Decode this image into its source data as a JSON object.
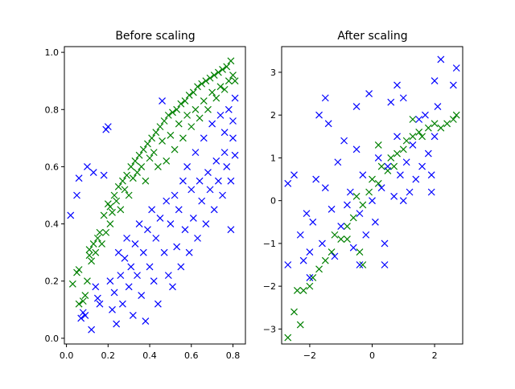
{
  "chart_data": [
    {
      "type": "scatter",
      "title": "Before scaling",
      "xlabel": "",
      "ylabel": "",
      "xlim": [
        -0.01,
        0.86
      ],
      "ylim": [
        -0.02,
        1.02
      ],
      "xticks": [
        "0.0",
        "0.2",
        "0.4",
        "0.6",
        "0.8"
      ],
      "yticks": [
        "0.0",
        "0.2",
        "0.4",
        "0.6",
        "0.8",
        "1.0"
      ],
      "xtick_values": [
        0.0,
        0.2,
        0.4,
        0.6,
        0.8
      ],
      "ytick_values": [
        0.0,
        0.2,
        0.4,
        0.6,
        0.8,
        1.0
      ],
      "grid": false,
      "marker": "x",
      "series": [
        {
          "color": "#008000",
          "points": [
            [
              0.03,
              0.19
            ],
            [
              0.05,
              0.23
            ],
            [
              0.06,
              0.24
            ],
            [
              0.06,
              0.12
            ],
            [
              0.08,
              0.13
            ],
            [
              0.09,
              0.15
            ],
            [
              0.1,
              0.2
            ],
            [
              0.11,
              0.29
            ],
            [
              0.11,
              0.31
            ],
            [
              0.12,
              0.27
            ],
            [
              0.13,
              0.33
            ],
            [
              0.14,
              0.3
            ],
            [
              0.15,
              0.35
            ],
            [
              0.16,
              0.37
            ],
            [
              0.17,
              0.33
            ],
            [
              0.18,
              0.43
            ],
            [
              0.19,
              0.37
            ],
            [
              0.2,
              0.47
            ],
            [
              0.21,
              0.46
            ],
            [
              0.21,
              0.4
            ],
            [
              0.22,
              0.44
            ],
            [
              0.23,
              0.5
            ],
            [
              0.24,
              0.48
            ],
            [
              0.25,
              0.53
            ],
            [
              0.26,
              0.45
            ],
            [
              0.27,
              0.55
            ],
            [
              0.28,
              0.52
            ],
            [
              0.29,
              0.57
            ],
            [
              0.3,
              0.5
            ],
            [
              0.31,
              0.6
            ],
            [
              0.32,
              0.56
            ],
            [
              0.33,
              0.62
            ],
            [
              0.34,
              0.58
            ],
            [
              0.35,
              0.64
            ],
            [
              0.36,
              0.6
            ],
            [
              0.37,
              0.66
            ],
            [
              0.38,
              0.55
            ],
            [
              0.39,
              0.68
            ],
            [
              0.4,
              0.63
            ],
            [
              0.41,
              0.7
            ],
            [
              0.42,
              0.65
            ],
            [
              0.43,
              0.72
            ],
            [
              0.44,
              0.6
            ],
            [
              0.45,
              0.74
            ],
            [
              0.46,
              0.69
            ],
            [
              0.47,
              0.76
            ],
            [
              0.48,
              0.62
            ],
            [
              0.49,
              0.78
            ],
            [
              0.5,
              0.71
            ],
            [
              0.51,
              0.79
            ],
            [
              0.52,
              0.66
            ],
            [
              0.53,
              0.8
            ],
            [
              0.54,
              0.75
            ],
            [
              0.55,
              0.82
            ],
            [
              0.56,
              0.7
            ],
            [
              0.57,
              0.83
            ],
            [
              0.58,
              0.78
            ],
            [
              0.59,
              0.85
            ],
            [
              0.6,
              0.74
            ],
            [
              0.61,
              0.86
            ],
            [
              0.62,
              0.8
            ],
            [
              0.63,
              0.88
            ],
            [
              0.64,
              0.77
            ],
            [
              0.65,
              0.89
            ],
            [
              0.66,
              0.83
            ],
            [
              0.67,
              0.9
            ],
            [
              0.68,
              0.8
            ],
            [
              0.69,
              0.91
            ],
            [
              0.7,
              0.86
            ],
            [
              0.71,
              0.92
            ],
            [
              0.72,
              0.84
            ],
            [
              0.73,
              0.93
            ],
            [
              0.74,
              0.88
            ],
            [
              0.75,
              0.94
            ],
            [
              0.76,
              0.87
            ],
            [
              0.77,
              0.95
            ],
            [
              0.78,
              0.9
            ],
            [
              0.79,
              0.97
            ],
            [
              0.8,
              0.92
            ],
            [
              0.81,
              0.9
            ]
          ]
        },
        {
          "color": "#0000ff",
          "points": [
            [
              0.02,
              0.43
            ],
            [
              0.05,
              0.5
            ],
            [
              0.06,
              0.56
            ],
            [
              0.07,
              0.07
            ],
            [
              0.08,
              0.09
            ],
            [
              0.09,
              0.08
            ],
            [
              0.1,
              0.6
            ],
            [
              0.12,
              0.03
            ],
            [
              0.13,
              0.58
            ],
            [
              0.14,
              0.18
            ],
            [
              0.15,
              0.14
            ],
            [
              0.16,
              0.12
            ],
            [
              0.18,
              0.57
            ],
            [
              0.19,
              0.73
            ],
            [
              0.2,
              0.74
            ],
            [
              0.21,
              0.2
            ],
            [
              0.22,
              0.1
            ],
            [
              0.23,
              0.16
            ],
            [
              0.24,
              0.05
            ],
            [
              0.25,
              0.3
            ],
            [
              0.26,
              0.22
            ],
            [
              0.27,
              0.12
            ],
            [
              0.28,
              0.28
            ],
            [
              0.29,
              0.35
            ],
            [
              0.3,
              0.18
            ],
            [
              0.31,
              0.25
            ],
            [
              0.32,
              0.08
            ],
            [
              0.33,
              0.33
            ],
            [
              0.34,
              0.22
            ],
            [
              0.35,
              0.4
            ],
            [
              0.36,
              0.15
            ],
            [
              0.37,
              0.3
            ],
            [
              0.38,
              0.06
            ],
            [
              0.39,
              0.38
            ],
            [
              0.4,
              0.25
            ],
            [
              0.41,
              0.45
            ],
            [
              0.42,
              0.2
            ],
            [
              0.43,
              0.35
            ],
            [
              0.44,
              0.12
            ],
            [
              0.45,
              0.42
            ],
            [
              0.46,
              0.83
            ],
            [
              0.47,
              0.3
            ],
            [
              0.48,
              0.48
            ],
            [
              0.49,
              0.22
            ],
            [
              0.5,
              0.4
            ],
            [
              0.51,
              0.18
            ],
            [
              0.52,
              0.5
            ],
            [
              0.53,
              0.32
            ],
            [
              0.54,
              0.45
            ],
            [
              0.55,
              0.25
            ],
            [
              0.56,
              0.55
            ],
            [
              0.57,
              0.38
            ],
            [
              0.58,
              0.6
            ],
            [
              0.59,
              0.3
            ],
            [
              0.6,
              0.52
            ],
            [
              0.61,
              0.42
            ],
            [
              0.62,
              0.65
            ],
            [
              0.63,
              0.35
            ],
            [
              0.64,
              0.55
            ],
            [
              0.65,
              0.48
            ],
            [
              0.66,
              0.7
            ],
            [
              0.67,
              0.4
            ],
            [
              0.68,
              0.58
            ],
            [
              0.69,
              0.52
            ],
            [
              0.7,
              0.75
            ],
            [
              0.71,
              0.45
            ],
            [
              0.72,
              0.62
            ],
            [
              0.73,
              0.55
            ],
            [
              0.74,
              0.78
            ],
            [
              0.75,
              0.5
            ],
            [
              0.76,
              0.65
            ],
            [
              0.77,
              0.6
            ],
            [
              0.78,
              0.8
            ],
            [
              0.79,
              0.55
            ],
            [
              0.8,
              0.7
            ],
            [
              0.81,
              0.84
            ],
            [
              0.79,
              0.38
            ],
            [
              0.8,
              0.76
            ],
            [
              0.81,
              0.64
            ],
            [
              0.76,
              0.72
            ]
          ]
        }
      ]
    },
    {
      "type": "scatter",
      "title": "After scaling",
      "xlabel": "",
      "ylabel": "",
      "xlim": [
        -2.9,
        2.9
      ],
      "ylim": [
        -3.35,
        3.6
      ],
      "xticks": [
        "−2",
        "0",
        "2"
      ],
      "yticks": [
        "−3",
        "−2",
        "−1",
        "0",
        "1",
        "2",
        "3"
      ],
      "xtick_values": [
        -2,
        0,
        2
      ],
      "ytick_values": [
        -3,
        -2,
        -1,
        0,
        1,
        2,
        3
      ],
      "grid": false,
      "marker": "x",
      "series": [
        {
          "color": "#008000",
          "points": [
            [
              -2.7,
              -3.2
            ],
            [
              -2.5,
              -2.6
            ],
            [
              -2.3,
              -2.9
            ],
            [
              -2.2,
              -2.1
            ],
            [
              -2.0,
              -2.0
            ],
            [
              -1.9,
              -1.8
            ],
            [
              -1.7,
              -1.6
            ],
            [
              -1.5,
              -1.4
            ],
            [
              -1.3,
              -1.2
            ],
            [
              -1.2,
              -0.8
            ],
            [
              -1.0,
              -0.9
            ],
            [
              -0.8,
              -0.6
            ],
            [
              -0.6,
              -0.4
            ],
            [
              -0.5,
              0.1
            ],
            [
              -0.3,
              -0.1
            ],
            [
              -0.1,
              0.2
            ],
            [
              0.0,
              0.5
            ],
            [
              0.2,
              0.4
            ],
            [
              0.3,
              0.8
            ],
            [
              0.5,
              0.7
            ],
            [
              0.6,
              1.0
            ],
            [
              0.8,
              1.1
            ],
            [
              1.0,
              1.2
            ],
            [
              1.1,
              1.4
            ],
            [
              1.3,
              1.5
            ],
            [
              1.5,
              1.6
            ],
            [
              1.6,
              1.5
            ],
            [
              1.8,
              1.7
            ],
            [
              2.0,
              1.8
            ],
            [
              2.2,
              1.7
            ],
            [
              2.4,
              1.8
            ],
            [
              2.6,
              1.9
            ],
            [
              2.7,
              2.0
            ],
            [
              -0.8,
              -0.9
            ],
            [
              0.2,
              1.3
            ],
            [
              -0.3,
              -1.5
            ],
            [
              -0.4,
              -1.2
            ],
            [
              0.7,
              0.8
            ],
            [
              1.3,
              1.9
            ],
            [
              -2.4,
              -2.1
            ]
          ]
        },
        {
          "color": "#0000ff",
          "points": [
            [
              -2.7,
              -1.5
            ],
            [
              -2.7,
              0.4
            ],
            [
              -2.5,
              0.6
            ],
            [
              -2.3,
              -0.8
            ],
            [
              -2.2,
              -1.4
            ],
            [
              -2.1,
              -0.3
            ],
            [
              -2.0,
              -1.8
            ],
            [
              -1.9,
              -0.5
            ],
            [
              -1.8,
              0.5
            ],
            [
              -1.7,
              2.0
            ],
            [
              -1.6,
              -1.0
            ],
            [
              -1.5,
              0.3
            ],
            [
              -1.4,
              1.8
            ],
            [
              -1.3,
              -0.2
            ],
            [
              -1.2,
              -1.3
            ],
            [
              -1.1,
              0.9
            ],
            [
              -1.0,
              -0.6
            ],
            [
              -0.9,
              1.4
            ],
            [
              -0.8,
              -0.1
            ],
            [
              -0.7,
              0.2
            ],
            [
              -0.6,
              -1.1
            ],
            [
              -0.5,
              1.2
            ],
            [
              -0.4,
              -0.3
            ],
            [
              -0.3,
              0.6
            ],
            [
              -0.2,
              -0.8
            ],
            [
              -0.1,
              2.5
            ],
            [
              0.0,
              0.0
            ],
            [
              0.1,
              -0.5
            ],
            [
              0.2,
              1.0
            ],
            [
              0.3,
              0.3
            ],
            [
              0.4,
              -1.0
            ],
            [
              0.5,
              0.8
            ],
            [
              0.6,
              2.3
            ],
            [
              0.7,
              0.1
            ],
            [
              0.8,
              1.5
            ],
            [
              0.9,
              0.6
            ],
            [
              1.0,
              2.4
            ],
            [
              1.1,
              0.9
            ],
            [
              1.2,
              0.2
            ],
            [
              1.3,
              1.3
            ],
            [
              1.4,
              0.5
            ],
            [
              1.5,
              1.9
            ],
            [
              1.6,
              0.8
            ],
            [
              1.7,
              2.0
            ],
            [
              1.8,
              1.1
            ],
            [
              1.9,
              0.6
            ],
            [
              2.0,
              1.5
            ],
            [
              2.1,
              2.2
            ],
            [
              2.2,
              3.3
            ],
            [
              2.6,
              2.7
            ],
            [
              2.7,
              3.1
            ],
            [
              2.0,
              2.8
            ],
            [
              0.8,
              2.7
            ],
            [
              -1.5,
              2.4
            ],
            [
              -0.5,
              2.2
            ],
            [
              1.9,
              0.2
            ],
            [
              -2.0,
              -1.2
            ],
            [
              -0.4,
              -1.5
            ],
            [
              0.4,
              -1.5
            ],
            [
              1.0,
              0.0
            ]
          ]
        }
      ]
    }
  ]
}
